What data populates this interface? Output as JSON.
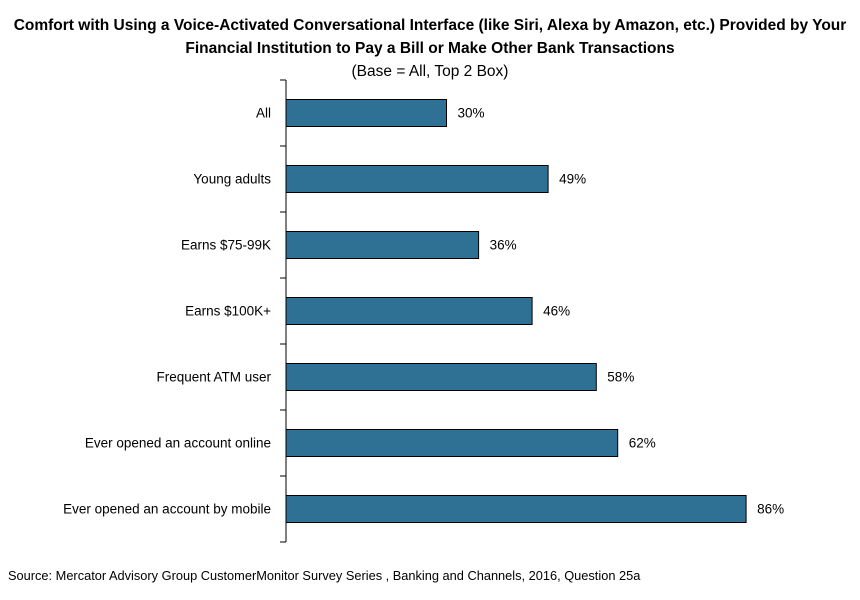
{
  "chart_data": {
    "type": "bar",
    "orientation": "horizontal",
    "title": "Comfort with Using a Voice-Activated Conversational Interface (like Siri, Alexa by Amazon, etc.) Provided by Your Financial Institution to Pay a Bill or Make Other Bank Transactions",
    "subtitle": "(Base = All, Top 2 Box)",
    "categories": [
      "All",
      "Young adults",
      "Earns $75-99K",
      "Earns $100K+",
      "Frequent ATM user",
      "Ever opened an account online",
      "Ever opened an account by mobile"
    ],
    "values": [
      30,
      49,
      36,
      46,
      58,
      62,
      86
    ],
    "value_labels": [
      "30%",
      "49%",
      "36%",
      "46%",
      "58%",
      "62%",
      "86%"
    ],
    "xlim": [
      0,
      100
    ],
    "grid": false,
    "legend": "none",
    "bar_color": "#2E7195",
    "source": "Source: Mercator Advisory Group CustomerMonitor Survey Series , Banking and Channels, 2016, Question 25a"
  }
}
